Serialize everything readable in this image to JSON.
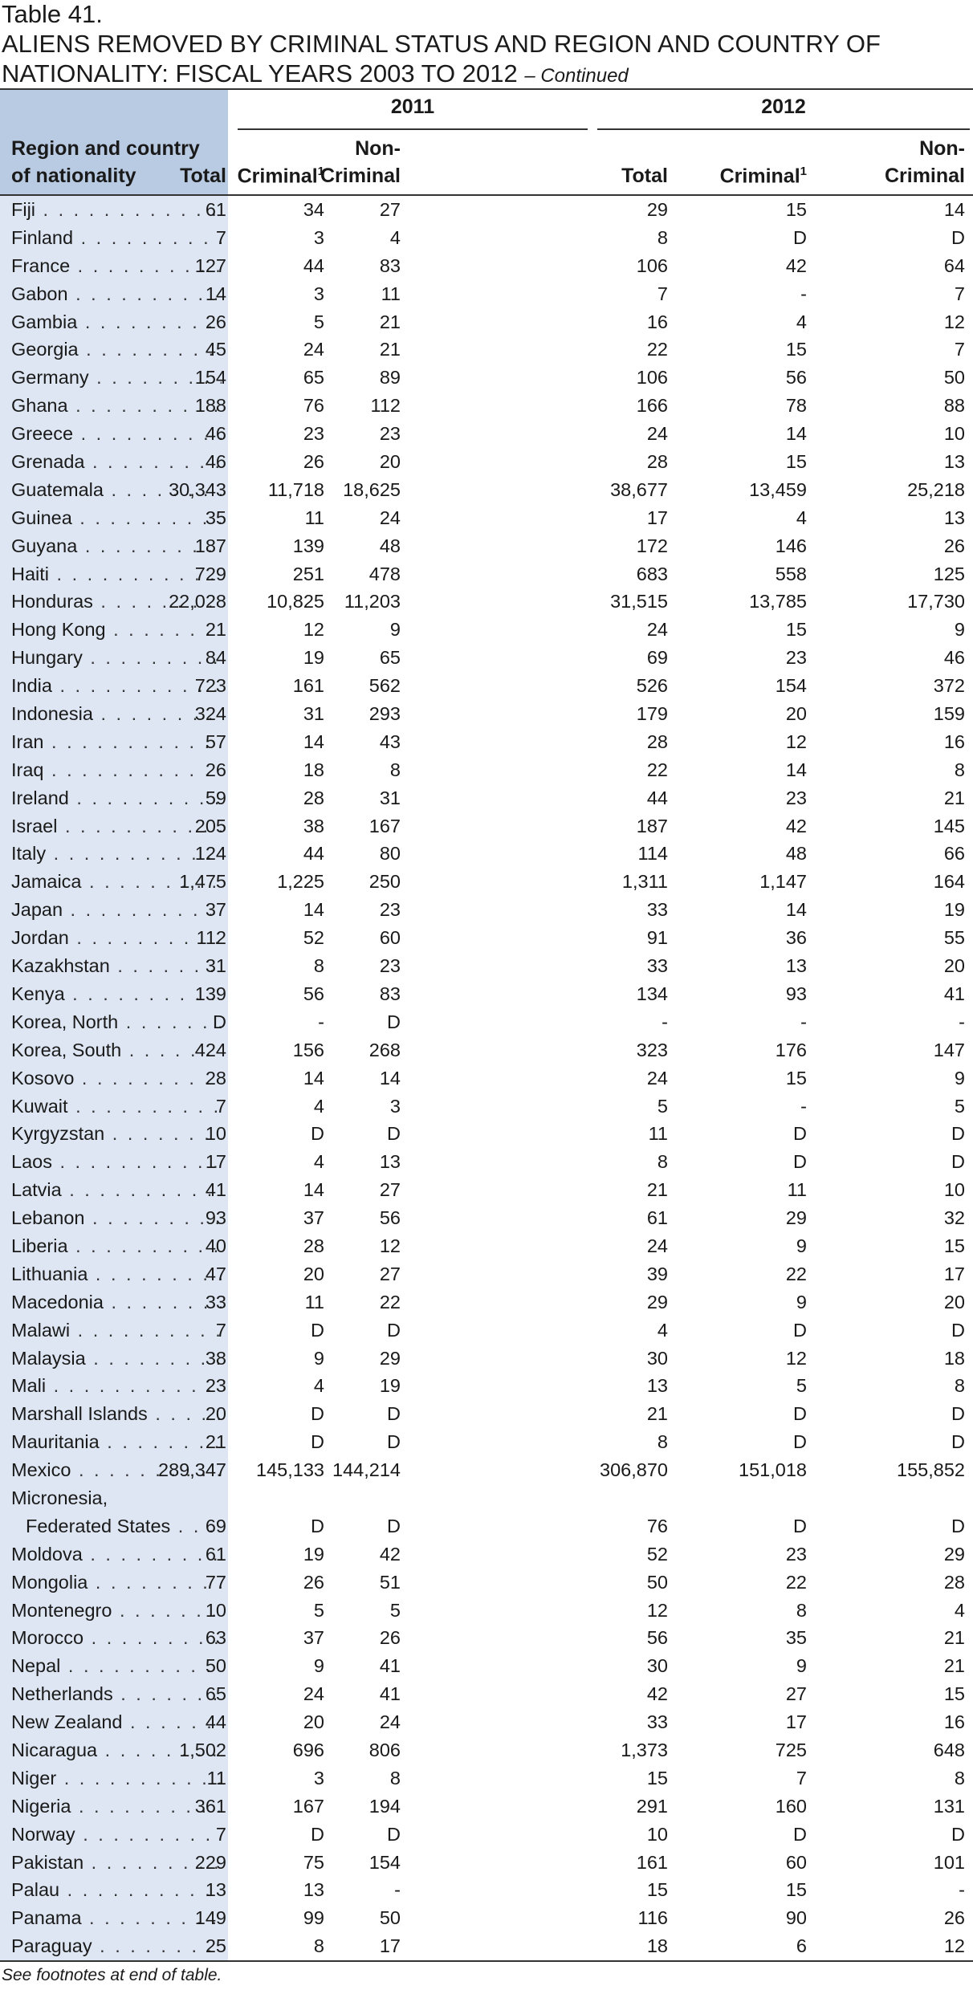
{
  "table_number": "Table 41.",
  "title_line1": "ALIENS REMOVED BY CRIMINAL STATUS AND REGION AND COUNTRY OF",
  "title_line2": "NATIONALITY: FISCAL YEARS 2003 TO 2012",
  "title_continued": "– Continued",
  "header": {
    "region_label_line1": "Region and country",
    "region_label_line2": "of nationality",
    "year_2011": "2011",
    "year_2012": "2012",
    "col_total": "Total",
    "col_criminal": "Criminal",
    "criminal_footnote_mark": "1",
    "col_noncriminal_line1": "Non-",
    "col_noncriminal_line2": "Criminal"
  },
  "rows": [
    {
      "country": "Fiji",
      "t11": "61",
      "c11": "34",
      "n11": "27",
      "t12": "29",
      "c12": "15",
      "n12": "14"
    },
    {
      "country": "Finland",
      "t11": "7",
      "c11": "3",
      "n11": "4",
      "t12": "8",
      "c12": "D",
      "n12": "D"
    },
    {
      "country": "France",
      "t11": "127",
      "c11": "44",
      "n11": "83",
      "t12": "106",
      "c12": "42",
      "n12": "64"
    },
    {
      "country": "Gabon",
      "t11": "14",
      "c11": "3",
      "n11": "11",
      "t12": "7",
      "c12": "-",
      "n12": "7"
    },
    {
      "country": "Gambia",
      "t11": "26",
      "c11": "5",
      "n11": "21",
      "t12": "16",
      "c12": "4",
      "n12": "12"
    },
    {
      "country": "Georgia",
      "t11": "45",
      "c11": "24",
      "n11": "21",
      "t12": "22",
      "c12": "15",
      "n12": "7"
    },
    {
      "country": "Germany",
      "t11": "154",
      "c11": "65",
      "n11": "89",
      "t12": "106",
      "c12": "56",
      "n12": "50"
    },
    {
      "country": "Ghana",
      "t11": "188",
      "c11": "76",
      "n11": "112",
      "t12": "166",
      "c12": "78",
      "n12": "88"
    },
    {
      "country": "Greece",
      "t11": "46",
      "c11": "23",
      "n11": "23",
      "t12": "24",
      "c12": "14",
      "n12": "10"
    },
    {
      "country": "Grenada",
      "t11": "46",
      "c11": "26",
      "n11": "20",
      "t12": "28",
      "c12": "15",
      "n12": "13"
    },
    {
      "country": "Guatemala",
      "t11": "30,343",
      "c11": "11,718",
      "n11": "18,625",
      "t12": "38,677",
      "c12": "13,459",
      "n12": "25,218"
    },
    {
      "country": "Guinea",
      "t11": "35",
      "c11": "11",
      "n11": "24",
      "t12": "17",
      "c12": "4",
      "n12": "13"
    },
    {
      "country": "Guyana",
      "t11": "187",
      "c11": "139",
      "n11": "48",
      "t12": "172",
      "c12": "146",
      "n12": "26"
    },
    {
      "country": "Haiti",
      "t11": "729",
      "c11": "251",
      "n11": "478",
      "t12": "683",
      "c12": "558",
      "n12": "125"
    },
    {
      "country": "Honduras",
      "t11": "22,028",
      "c11": "10,825",
      "n11": "11,203",
      "t12": "31,515",
      "c12": "13,785",
      "n12": "17,730"
    },
    {
      "country": "Hong Kong",
      "t11": "21",
      "c11": "12",
      "n11": "9",
      "t12": "24",
      "c12": "15",
      "n12": "9"
    },
    {
      "country": "Hungary",
      "t11": "84",
      "c11": "19",
      "n11": "65",
      "t12": "69",
      "c12": "23",
      "n12": "46"
    },
    {
      "country": "India",
      "t11": "723",
      "c11": "161",
      "n11": "562",
      "t12": "526",
      "c12": "154",
      "n12": "372"
    },
    {
      "country": "Indonesia",
      "t11": "324",
      "c11": "31",
      "n11": "293",
      "t12": "179",
      "c12": "20",
      "n12": "159"
    },
    {
      "country": "Iran",
      "t11": "57",
      "c11": "14",
      "n11": "43",
      "t12": "28",
      "c12": "12",
      "n12": "16"
    },
    {
      "country": "Iraq",
      "t11": "26",
      "c11": "18",
      "n11": "8",
      "t12": "22",
      "c12": "14",
      "n12": "8"
    },
    {
      "country": "Ireland",
      "t11": "59",
      "c11": "28",
      "n11": "31",
      "t12": "44",
      "c12": "23",
      "n12": "21"
    },
    {
      "country": "Israel",
      "t11": "205",
      "c11": "38",
      "n11": "167",
      "t12": "187",
      "c12": "42",
      "n12": "145"
    },
    {
      "country": "Italy",
      "t11": "124",
      "c11": "44",
      "n11": "80",
      "t12": "114",
      "c12": "48",
      "n12": "66"
    },
    {
      "country": "Jamaica",
      "t11": "1,475",
      "c11": "1,225",
      "n11": "250",
      "t12": "1,311",
      "c12": "1,147",
      "n12": "164"
    },
    {
      "country": "Japan",
      "t11": "37",
      "c11": "14",
      "n11": "23",
      "t12": "33",
      "c12": "14",
      "n12": "19"
    },
    {
      "country": "Jordan",
      "t11": "112",
      "c11": "52",
      "n11": "60",
      "t12": "91",
      "c12": "36",
      "n12": "55"
    },
    {
      "country": "Kazakhstan",
      "t11": "31",
      "c11": "8",
      "n11": "23",
      "t12": "33",
      "c12": "13",
      "n12": "20"
    },
    {
      "country": "Kenya",
      "t11": "139",
      "c11": "56",
      "n11": "83",
      "t12": "134",
      "c12": "93",
      "n12": "41"
    },
    {
      "country": "Korea, North",
      "t11": "D",
      "c11": "-",
      "n11": "D",
      "t12": "-",
      "c12": "-",
      "n12": "-"
    },
    {
      "country": "Korea, South",
      "t11": "424",
      "c11": "156",
      "n11": "268",
      "t12": "323",
      "c12": "176",
      "n12": "147"
    },
    {
      "country": "Kosovo",
      "t11": "28",
      "c11": "14",
      "n11": "14",
      "t12": "24",
      "c12": "15",
      "n12": "9"
    },
    {
      "country": "Kuwait",
      "t11": "7",
      "c11": "4",
      "n11": "3",
      "t12": "5",
      "c12": "-",
      "n12": "5"
    },
    {
      "country": "Kyrgyzstan",
      "t11": "10",
      "c11": "D",
      "n11": "D",
      "t12": "11",
      "c12": "D",
      "n12": "D"
    },
    {
      "country": "Laos",
      "t11": "17",
      "c11": "4",
      "n11": "13",
      "t12": "8",
      "c12": "D",
      "n12": "D"
    },
    {
      "country": "Latvia",
      "t11": "41",
      "c11": "14",
      "n11": "27",
      "t12": "21",
      "c12": "11",
      "n12": "10"
    },
    {
      "country": "Lebanon",
      "t11": "93",
      "c11": "37",
      "n11": "56",
      "t12": "61",
      "c12": "29",
      "n12": "32"
    },
    {
      "country": "Liberia",
      "t11": "40",
      "c11": "28",
      "n11": "12",
      "t12": "24",
      "c12": "9",
      "n12": "15"
    },
    {
      "country": "Lithuania",
      "t11": "47",
      "c11": "20",
      "n11": "27",
      "t12": "39",
      "c12": "22",
      "n12": "17"
    },
    {
      "country": "Macedonia",
      "t11": "33",
      "c11": "11",
      "n11": "22",
      "t12": "29",
      "c12": "9",
      "n12": "20"
    },
    {
      "country": "Malawi",
      "t11": "7",
      "c11": "D",
      "n11": "D",
      "t12": "4",
      "c12": "D",
      "n12": "D"
    },
    {
      "country": "Malaysia",
      "t11": "38",
      "c11": "9",
      "n11": "29",
      "t12": "30",
      "c12": "12",
      "n12": "18"
    },
    {
      "country": "Mali",
      "t11": "23",
      "c11": "4",
      "n11": "19",
      "t12": "13",
      "c12": "5",
      "n12": "8"
    },
    {
      "country": "Marshall Islands",
      "t11": "20",
      "c11": "D",
      "n11": "D",
      "t12": "21",
      "c12": "D",
      "n12": "D"
    },
    {
      "country": "Mauritania",
      "t11": "21",
      "c11": "D",
      "n11": "D",
      "t12": "8",
      "c12": "D",
      "n12": "D"
    },
    {
      "country": "Mexico",
      "t11": "289,347",
      "c11": "145,133",
      "n11": "144,214",
      "t12": "306,870",
      "c12": "151,018",
      "n12": "155,852"
    },
    {
      "country": "Micronesia,",
      "country_line2": "Federated States",
      "t11": "69",
      "c11": "D",
      "n11": "D",
      "t12": "76",
      "c12": "D",
      "n12": "D"
    },
    {
      "country": "Moldova",
      "t11": "61",
      "c11": "19",
      "n11": "42",
      "t12": "52",
      "c12": "23",
      "n12": "29"
    },
    {
      "country": "Mongolia",
      "t11": "77",
      "c11": "26",
      "n11": "51",
      "t12": "50",
      "c12": "22",
      "n12": "28"
    },
    {
      "country": "Montenegro",
      "t11": "10",
      "c11": "5",
      "n11": "5",
      "t12": "12",
      "c12": "8",
      "n12": "4"
    },
    {
      "country": "Morocco",
      "t11": "63",
      "c11": "37",
      "n11": "26",
      "t12": "56",
      "c12": "35",
      "n12": "21"
    },
    {
      "country": "Nepal",
      "t11": "50",
      "c11": "9",
      "n11": "41",
      "t12": "30",
      "c12": "9",
      "n12": "21"
    },
    {
      "country": "Netherlands",
      "t11": "65",
      "c11": "24",
      "n11": "41",
      "t12": "42",
      "c12": "27",
      "n12": "15"
    },
    {
      "country": "New Zealand",
      "t11": "44",
      "c11": "20",
      "n11": "24",
      "t12": "33",
      "c12": "17",
      "n12": "16"
    },
    {
      "country": "Nicaragua",
      "t11": "1,502",
      "c11": "696",
      "n11": "806",
      "t12": "1,373",
      "c12": "725",
      "n12": "648"
    },
    {
      "country": "Niger",
      "t11": "11",
      "c11": "3",
      "n11": "8",
      "t12": "15",
      "c12": "7",
      "n12": "8"
    },
    {
      "country": "Nigeria",
      "t11": "361",
      "c11": "167",
      "n11": "194",
      "t12": "291",
      "c12": "160",
      "n12": "131"
    },
    {
      "country": "Norway",
      "t11": "7",
      "c11": "D",
      "n11": "D",
      "t12": "10",
      "c12": "D",
      "n12": "D"
    },
    {
      "country": "Pakistan",
      "t11": "229",
      "c11": "75",
      "n11": "154",
      "t12": "161",
      "c12": "60",
      "n12": "101"
    },
    {
      "country": "Palau",
      "t11": "13",
      "c11": "13",
      "n11": "-",
      "t12": "15",
      "c12": "15",
      "n12": "-"
    },
    {
      "country": "Panama",
      "t11": "149",
      "c11": "99",
      "n11": "50",
      "t12": "116",
      "c12": "90",
      "n12": "26"
    },
    {
      "country": "Paraguay",
      "t11": "25",
      "c11": "8",
      "n11": "17",
      "t12": "18",
      "c12": "6",
      "n12": "12"
    }
  ],
  "footnote": "See footnotes at end of table."
}
